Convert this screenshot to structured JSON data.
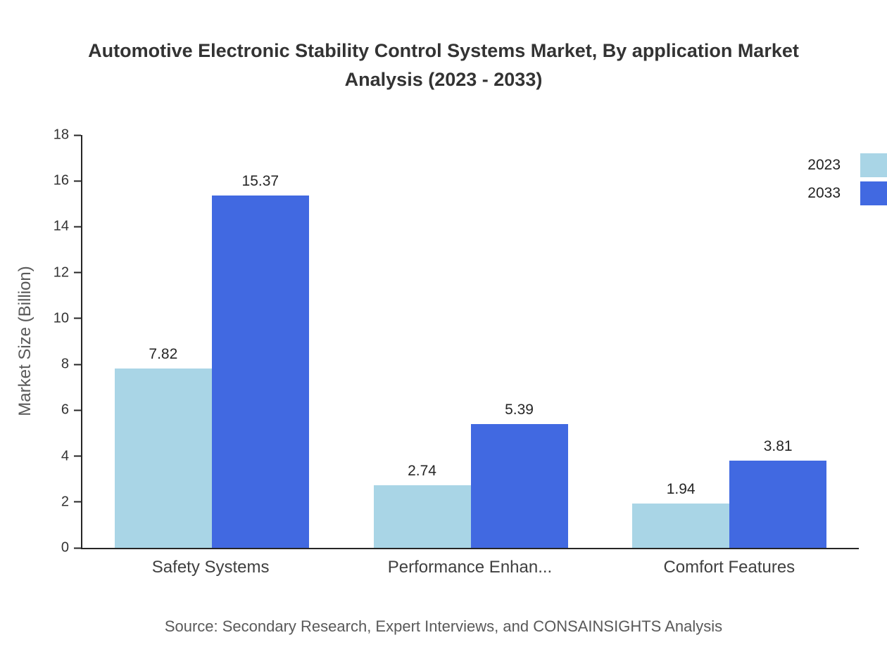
{
  "chart_data": {
    "type": "bar",
    "title": "Automotive Electronic Stability Control Systems Market, By application Market Analysis (2023 - 2033)",
    "categories": [
      "Safety Systems",
      "Performance Enhan...",
      "Comfort Features"
    ],
    "series": [
      {
        "name": "2023",
        "color": "#a9d5e6",
        "values": [
          7.82,
          2.74,
          1.94
        ]
      },
      {
        "name": "2033",
        "color": "#4169e1",
        "values": [
          15.37,
          5.39,
          3.81
        ]
      }
    ],
    "xlabel": "",
    "ylabel": "Market Size (Billion)",
    "ylim": [
      0,
      18
    ],
    "ytick_step": 2,
    "grid": false,
    "legend_position": "top-right",
    "value_labels": "above-bars"
  },
  "source": "Source: Secondary Research, Expert Interviews, and CONSAINSIGHTS Analysis"
}
